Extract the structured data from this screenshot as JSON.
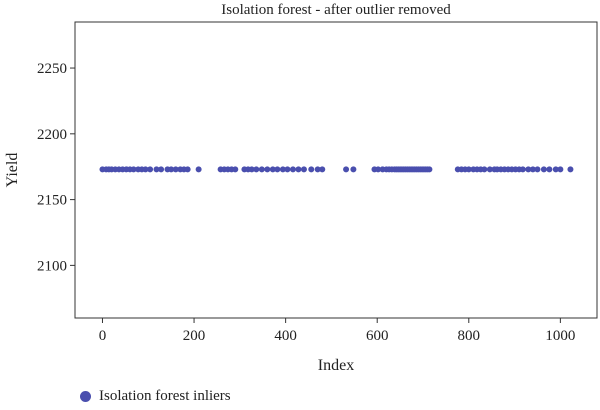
{
  "chart_data": {
    "type": "scatter",
    "title": "Isolation forest - after outlier removed",
    "xlabel": "Index",
    "ylabel": "Yield",
    "xlim": [
      -60,
      1080
    ],
    "ylim": [
      2060,
      2285
    ],
    "x_ticks": [
      0,
      200,
      400,
      600,
      800,
      1000
    ],
    "y_ticks": [
      2100,
      2150,
      2200,
      2250
    ],
    "grid": false,
    "legend_position": "bottom-left",
    "series": [
      {
        "name": "Isolation forest inliers",
        "color": "#4a4fae",
        "x": [
          0,
          8,
          14,
          20,
          28,
          36,
          44,
          52,
          60,
          68,
          78,
          86,
          94,
          104,
          118,
          128,
          142,
          150,
          160,
          170,
          178,
          186,
          210,
          258,
          266,
          274,
          282,
          290,
          310,
          318,
          326,
          336,
          348,
          360,
          372,
          382,
          394,
          404,
          416,
          428,
          440,
          456,
          470,
          480,
          532,
          548,
          594,
          602,
          612,
          620,
          626,
          632,
          638,
          642,
          646,
          650,
          654,
          658,
          662,
          666,
          670,
          674,
          678,
          682,
          686,
          690,
          694,
          698,
          702,
          706,
          710,
          714,
          776,
          784,
          792,
          800,
          810,
          818,
          826,
          834,
          846,
          856,
          862,
          870,
          878,
          886,
          894,
          902,
          910,
          918,
          930,
          940,
          950,
          964,
          976,
          990,
          1000,
          1022
        ],
        "y": [
          2173,
          2173,
          2173,
          2173,
          2173,
          2173,
          2173,
          2173,
          2173,
          2173,
          2173,
          2173,
          2173,
          2173,
          2173,
          2173,
          2173,
          2173,
          2173,
          2173,
          2173,
          2173,
          2173,
          2173,
          2173,
          2173,
          2173,
          2173,
          2173,
          2173,
          2173,
          2173,
          2173,
          2173,
          2173,
          2173,
          2173,
          2173,
          2173,
          2173,
          2173,
          2173,
          2173,
          2173,
          2173,
          2173,
          2173,
          2173,
          2173,
          2173,
          2173,
          2173,
          2173,
          2173,
          2173,
          2173,
          2173,
          2173,
          2173,
          2173,
          2173,
          2173,
          2173,
          2173,
          2173,
          2173,
          2173,
          2173,
          2173,
          2173,
          2173,
          2173,
          2173,
          2173,
          2173,
          2173,
          2173,
          2173,
          2173,
          2173,
          2173,
          2173,
          2173,
          2173,
          2173,
          2173,
          2173,
          2173,
          2173,
          2173,
          2173,
          2173,
          2173,
          2173,
          2173,
          2173,
          2173,
          2173
        ]
      }
    ]
  }
}
